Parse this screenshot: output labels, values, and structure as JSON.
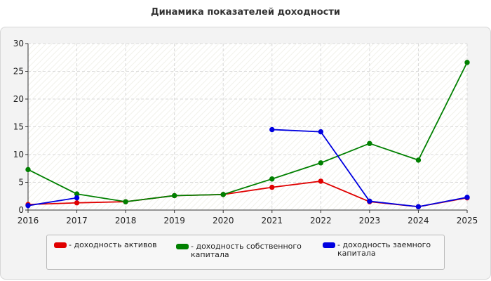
{
  "chart_data": {
    "type": "line",
    "title": "Динамика показателей доходности",
    "xlabel": "",
    "ylabel": "",
    "x": [
      "2016",
      "2017",
      "2018",
      "2019",
      "2020",
      "2021",
      "2022",
      "2023",
      "2024",
      "2025"
    ],
    "ylim": [
      0,
      30
    ],
    "yticks": [
      "0",
      "5",
      "10",
      "15",
      "20",
      "25",
      "30"
    ],
    "grid": true,
    "legend_position": "bottom",
    "series": [
      {
        "name": "- доходность активов",
        "color": "#e00000",
        "values": [
          1.0,
          1.3,
          1.5,
          2.6,
          2.8,
          4.1,
          5.2,
          1.5,
          0.6,
          2.2
        ]
      },
      {
        "name": "- доходность собственного капитала",
        "color": "#008000",
        "values": [
          7.3,
          2.9,
          1.5,
          2.6,
          2.8,
          5.6,
          8.5,
          12.0,
          9.0,
          26.6
        ]
      },
      {
        "name": "- доходность заемного капитала",
        "color": "#0000e0",
        "values": [
          0.8,
          2.2,
          null,
          null,
          null,
          14.5,
          14.1,
          1.6,
          0.6,
          2.3
        ]
      }
    ]
  },
  "legend": [
    {
      "label": "- доходность активов"
    },
    {
      "label": "- доходность собственного\nкапитала"
    },
    {
      "label": "- доходность заемного\nкапитала"
    }
  ]
}
